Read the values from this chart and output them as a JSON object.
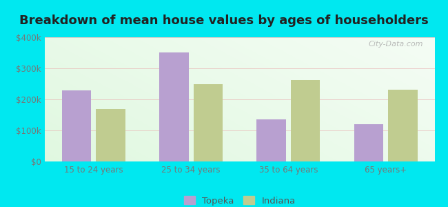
{
  "title": "Breakdown of mean house values by ages of householders",
  "categories": [
    "15 to 24 years",
    "25 to 34 years",
    "35 to 64 years",
    "65 years+"
  ],
  "topeka_values": [
    230000,
    350000,
    135000,
    120000
  ],
  "indiana_values": [
    168000,
    248000,
    262000,
    232000
  ],
  "topeka_color": "#b8a0d0",
  "indiana_color": "#c0cc90",
  "ylim": [
    0,
    400000
  ],
  "ytick_labels": [
    "$0",
    "$100k",
    "$200k",
    "$300k",
    "$400k"
  ],
  "ytick_values": [
    0,
    100000,
    200000,
    300000,
    400000
  ],
  "legend_topeka": "Topeka",
  "legend_indiana": "Indiana",
  "background_outer": "#00e8f0",
  "title_fontsize": 13,
  "watermark": "City-Data.com"
}
